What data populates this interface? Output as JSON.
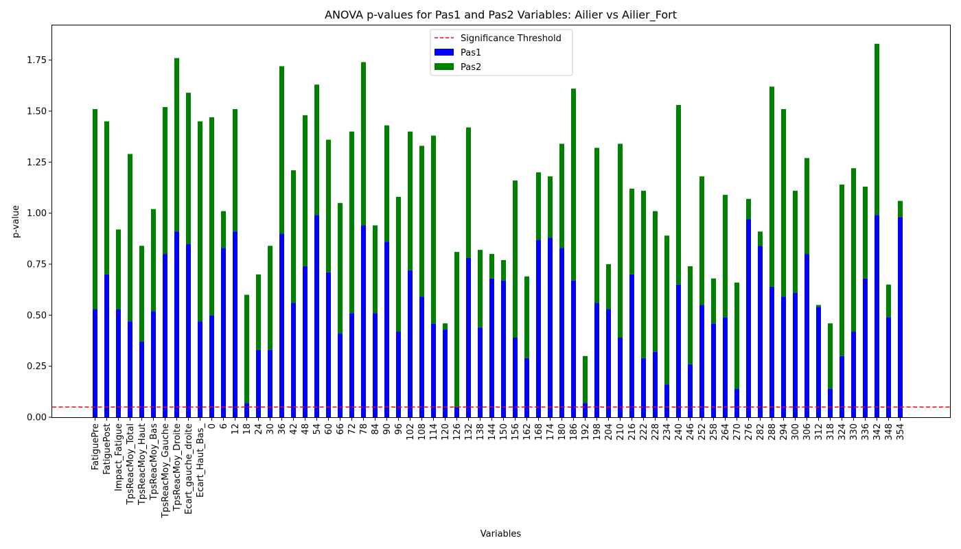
{
  "chart_data": {
    "type": "bar",
    "stacked": true,
    "title": "ANOVA p-values for Pas1 and Pas2 Variables: Ailier vs Ailier_Fort",
    "xlabel": "Variables",
    "ylabel": "p-value",
    "ylim": [
      0,
      1.92
    ],
    "yticks": [
      "0.00",
      "0.25",
      "0.50",
      "0.75",
      "1.00",
      "1.25",
      "1.50",
      "1.75"
    ],
    "categories": [
      "FatiguePre",
      "FatiguePost",
      "Impact_Fatigue",
      "TpsReacMoy_Total",
      "TpsReacMoy_Haut",
      "TpsReacMoy_Bas",
      "TpsReacMoy_Gauche",
      "TpsReacMoy_Droite",
      "Ecart_gauche_droite",
      "Ecart_Haut_Bas_",
      "0",
      "6",
      "12",
      "18",
      "24",
      "30",
      "36",
      "42",
      "48",
      "54",
      "60",
      "66",
      "72",
      "78",
      "84",
      "90",
      "96",
      "102",
      "108",
      "114",
      "120",
      "126",
      "132",
      "138",
      "144",
      "150",
      "156",
      "162",
      "168",
      "174",
      "180",
      "186",
      "192",
      "198",
      "204",
      "210",
      "216",
      "222",
      "228",
      "234",
      "240",
      "246",
      "252",
      "258",
      "264",
      "270",
      "276",
      "282",
      "288",
      "294",
      "300",
      "306",
      "312",
      "318",
      "324",
      "330",
      "336",
      "342",
      "348",
      "354"
    ],
    "series": [
      {
        "name": "Pas1",
        "color": "#0000ff",
        "values": [
          0.53,
          0.7,
          0.53,
          0.47,
          0.37,
          0.52,
          0.8,
          0.91,
          0.85,
          0.47,
          0.5,
          0.83,
          0.91,
          0.07,
          0.33,
          0.33,
          0.9,
          0.56,
          0.74,
          0.99,
          0.71,
          0.41,
          0.51,
          0.94,
          0.51,
          0.86,
          0.42,
          0.72,
          0.59,
          0.46,
          0.43,
          0.05,
          0.78,
          0.44,
          0.68,
          0.67,
          0.39,
          0.29,
          0.87,
          0.88,
          0.83,
          0.67,
          0.07,
          0.56,
          0.53,
          0.39,
          0.7,
          0.29,
          0.32,
          0.16,
          0.65,
          0.26,
          0.55,
          0.46,
          0.49,
          0.14,
          0.97,
          0.84,
          0.64,
          0.59,
          0.61,
          0.8,
          0.54,
          0.14,
          0.3,
          0.42,
          0.68,
          0.99,
          0.49,
          0.98
        ]
      },
      {
        "name": "Pas2",
        "color": "#008000",
        "values": [
          0.98,
          0.75,
          0.39,
          0.82,
          0.47,
          0.5,
          0.72,
          0.85,
          0.74,
          0.98,
          0.97,
          0.18,
          0.6,
          0.53,
          0.37,
          0.51,
          0.82,
          0.65,
          0.74,
          0.64,
          0.65,
          0.64,
          0.89,
          0.8,
          0.43,
          0.57,
          0.66,
          0.68,
          0.74,
          0.92,
          0.03,
          0.76,
          0.64,
          0.38,
          0.12,
          0.1,
          0.77,
          0.4,
          0.33,
          0.3,
          0.51,
          0.94,
          0.23,
          0.76,
          0.22,
          0.95,
          0.42,
          0.82,
          0.69,
          0.73,
          0.88,
          0.48,
          0.63,
          0.22,
          0.6,
          0.52,
          0.1,
          0.07,
          0.98,
          0.92,
          0.5,
          0.47,
          0.01,
          0.32,
          0.84,
          0.8,
          0.45,
          0.84,
          0.16,
          0.08
        ]
      }
    ],
    "threshold": {
      "label": "Significance Threshold",
      "value": 0.05,
      "color": "#ff0000"
    },
    "legend_position": "top-center",
    "grid": false
  }
}
